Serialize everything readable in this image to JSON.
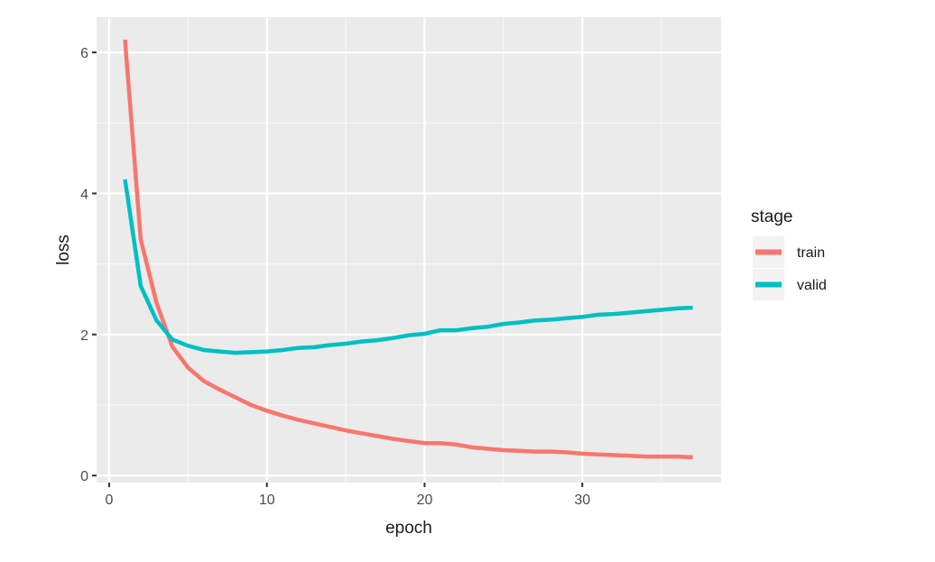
{
  "chart_data": {
    "type": "line",
    "title": "",
    "xlabel": "epoch",
    "ylabel": "loss",
    "xlim": [
      -0.8,
      38.8
    ],
    "ylim": [
      -0.1,
      6.5
    ],
    "x_ticks": [
      0,
      10,
      20,
      30
    ],
    "x_tick_labels": [
      "0",
      "10",
      "20",
      "30"
    ],
    "y_ticks": [
      0,
      2,
      4,
      6
    ],
    "y_tick_labels": [
      "0",
      "2",
      "4",
      "6"
    ],
    "grid": true,
    "legend": {
      "title": "stage",
      "position": "right"
    },
    "series": [
      {
        "name": "train",
        "color": "#F8766D",
        "x": [
          1,
          2,
          3,
          4,
          5,
          6,
          7,
          8,
          9,
          10,
          11,
          12,
          13,
          14,
          15,
          16,
          17,
          18,
          19,
          20,
          21,
          22,
          23,
          24,
          25,
          26,
          27,
          28,
          29,
          30,
          31,
          32,
          33,
          34,
          35,
          36,
          37
        ],
        "values": [
          6.18,
          3.35,
          2.45,
          1.83,
          1.53,
          1.34,
          1.22,
          1.11,
          1.0,
          0.92,
          0.85,
          0.79,
          0.74,
          0.69,
          0.64,
          0.6,
          0.56,
          0.52,
          0.49,
          0.46,
          0.46,
          0.44,
          0.4,
          0.38,
          0.36,
          0.35,
          0.34,
          0.34,
          0.33,
          0.31,
          0.3,
          0.29,
          0.28,
          0.27,
          0.27,
          0.27,
          0.26
        ]
      },
      {
        "name": "valid",
        "color": "#00BFC4",
        "x": [
          1,
          2,
          3,
          4,
          5,
          6,
          7,
          8,
          9,
          10,
          11,
          12,
          13,
          14,
          15,
          16,
          17,
          18,
          19,
          20,
          21,
          22,
          23,
          24,
          25,
          26,
          27,
          28,
          29,
          30,
          31,
          32,
          33,
          34,
          35,
          36,
          37
        ],
        "values": [
          4.2,
          2.69,
          2.2,
          1.93,
          1.84,
          1.78,
          1.76,
          1.74,
          1.75,
          1.76,
          1.78,
          1.81,
          1.82,
          1.85,
          1.87,
          1.9,
          1.92,
          1.95,
          1.99,
          2.01,
          2.06,
          2.06,
          2.09,
          2.11,
          2.15,
          2.17,
          2.2,
          2.21,
          2.23,
          2.25,
          2.28,
          2.29,
          2.31,
          2.33,
          2.35,
          2.37,
          2.38
        ]
      }
    ]
  }
}
